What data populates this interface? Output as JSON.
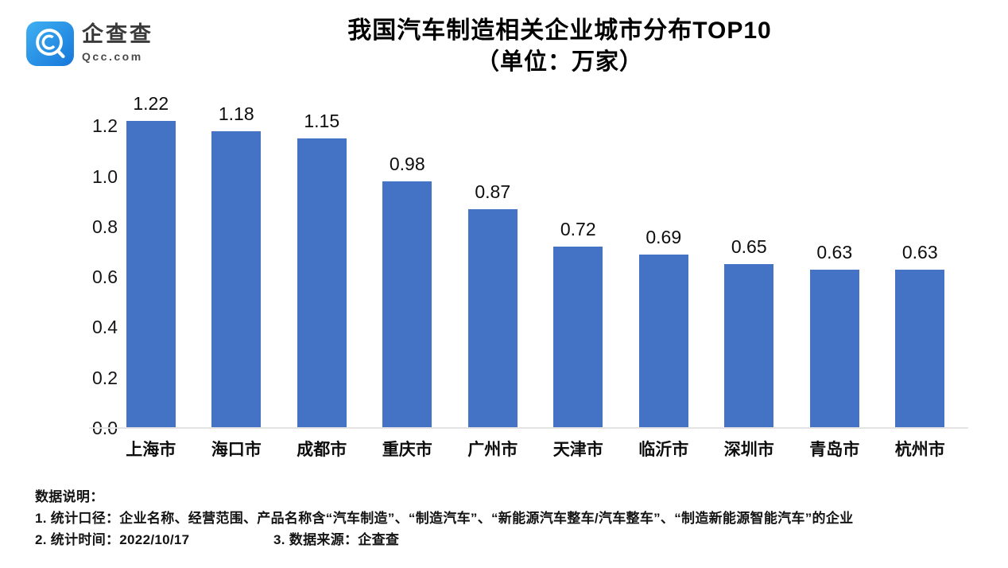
{
  "logo": {
    "brand": "企查查",
    "domain": "Qcc.com",
    "icon": "magnifier-q-icon",
    "color_top": "#3fb0f2",
    "color_bottom": "#1677d9"
  },
  "chart_data": {
    "type": "bar",
    "title": "我国汽车制造相关企业城市分布TOP10",
    "subtitle": "（单位：万家）",
    "categories": [
      "上海市",
      "海口市",
      "成都市",
      "重庆市",
      "广州市",
      "天津市",
      "临沂市",
      "深圳市",
      "青岛市",
      "杭州市"
    ],
    "values": [
      1.22,
      1.18,
      1.15,
      0.98,
      0.87,
      0.72,
      0.69,
      0.65,
      0.63,
      0.63
    ],
    "value_labels": [
      "1.22",
      "1.18",
      "1.15",
      "0.98",
      "0.87",
      "0.72",
      "0.69",
      "0.65",
      "0.63",
      "0.63"
    ],
    "xlabel": "",
    "ylabel": "",
    "ylim": [
      0,
      1.2
    ],
    "yticks": [
      "0.0",
      "0.2",
      "0.4",
      "0.6",
      "0.8",
      "1.0",
      "1.2"
    ],
    "bar_color": "#4472C4",
    "grid": false,
    "legend_position": "none"
  },
  "notes": {
    "heading": "数据说明：",
    "line1": "1. 统计口径：企业名称、经营范围、产品名称含“汽车制造”、“制造汽车”、“新能源汽车整车/汽车整车”、“制造新能源智能汽车”的企业",
    "line2_left": "2. 统计时间：2022/10/17",
    "line2_right": "3. 数据来源：企查查"
  }
}
